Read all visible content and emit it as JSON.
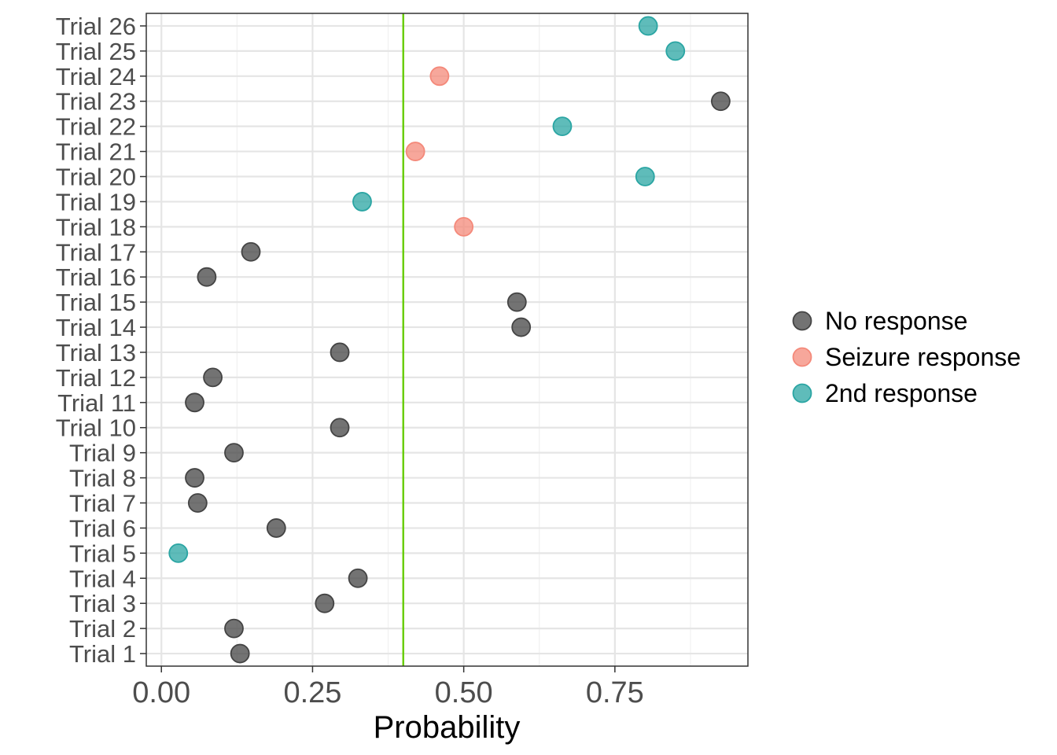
{
  "chart_data": {
    "type": "scatter",
    "xlabel": "Probability",
    "ylabel": "",
    "xlim": [
      -0.025,
      0.97
    ],
    "x_ticks": [
      0.0,
      0.25,
      0.5,
      0.75
    ],
    "x_tick_labels": [
      "0.00",
      "0.25",
      "0.50",
      "0.75"
    ],
    "grid": true,
    "legend_position": "right",
    "reference_line": {
      "x": 0.4,
      "color": "#66cc00"
    },
    "categories": [
      "Trial 1",
      "Trial 2",
      "Trial 3",
      "Trial 4",
      "Trial 5",
      "Trial 6",
      "Trial 7",
      "Trial 8",
      "Trial 9",
      "Trial 10",
      "Trial 11",
      "Trial 12",
      "Trial 13",
      "Trial 14",
      "Trial 15",
      "Trial 16",
      "Trial 17",
      "Trial 18",
      "Trial 19",
      "Trial 20",
      "Trial 21",
      "Trial 22",
      "Trial 23",
      "Trial 24",
      "Trial 25",
      "Trial 26"
    ],
    "series": [
      {
        "name": "No response",
        "color": "#444444",
        "points": [
          {
            "trial": "Trial 1",
            "x": 0.13
          },
          {
            "trial": "Trial 2",
            "x": 0.12
          },
          {
            "trial": "Trial 3",
            "x": 0.27
          },
          {
            "trial": "Trial 4",
            "x": 0.325
          },
          {
            "trial": "Trial 6",
            "x": 0.19
          },
          {
            "trial": "Trial 7",
            "x": 0.06
          },
          {
            "trial": "Trial 8",
            "x": 0.055
          },
          {
            "trial": "Trial 9",
            "x": 0.12
          },
          {
            "trial": "Trial 10",
            "x": 0.295
          },
          {
            "trial": "Trial 11",
            "x": 0.055
          },
          {
            "trial": "Trial 12",
            "x": 0.085
          },
          {
            "trial": "Trial 13",
            "x": 0.295
          },
          {
            "trial": "Trial 14",
            "x": 0.595
          },
          {
            "trial": "Trial 15",
            "x": 0.588
          },
          {
            "trial": "Trial 16",
            "x": 0.075
          },
          {
            "trial": "Trial 17",
            "x": 0.148
          },
          {
            "trial": "Trial 23",
            "x": 0.925
          }
        ]
      },
      {
        "name": "Seizure response",
        "color": "#f4897a",
        "points": [
          {
            "trial": "Trial 18",
            "x": 0.5
          },
          {
            "trial": "Trial 21",
            "x": 0.42
          },
          {
            "trial": "Trial 24",
            "x": 0.46
          }
        ]
      },
      {
        "name": "2nd response",
        "color": "#2aa5a3",
        "points": [
          {
            "trial": "Trial 5",
            "x": 0.028
          },
          {
            "trial": "Trial 19",
            "x": 0.332
          },
          {
            "trial": "Trial 20",
            "x": 0.8
          },
          {
            "trial": "Trial 22",
            "x": 0.663
          },
          {
            "trial": "Trial 25",
            "x": 0.85
          },
          {
            "trial": "Trial 26",
            "x": 0.805
          }
        ]
      }
    ]
  }
}
